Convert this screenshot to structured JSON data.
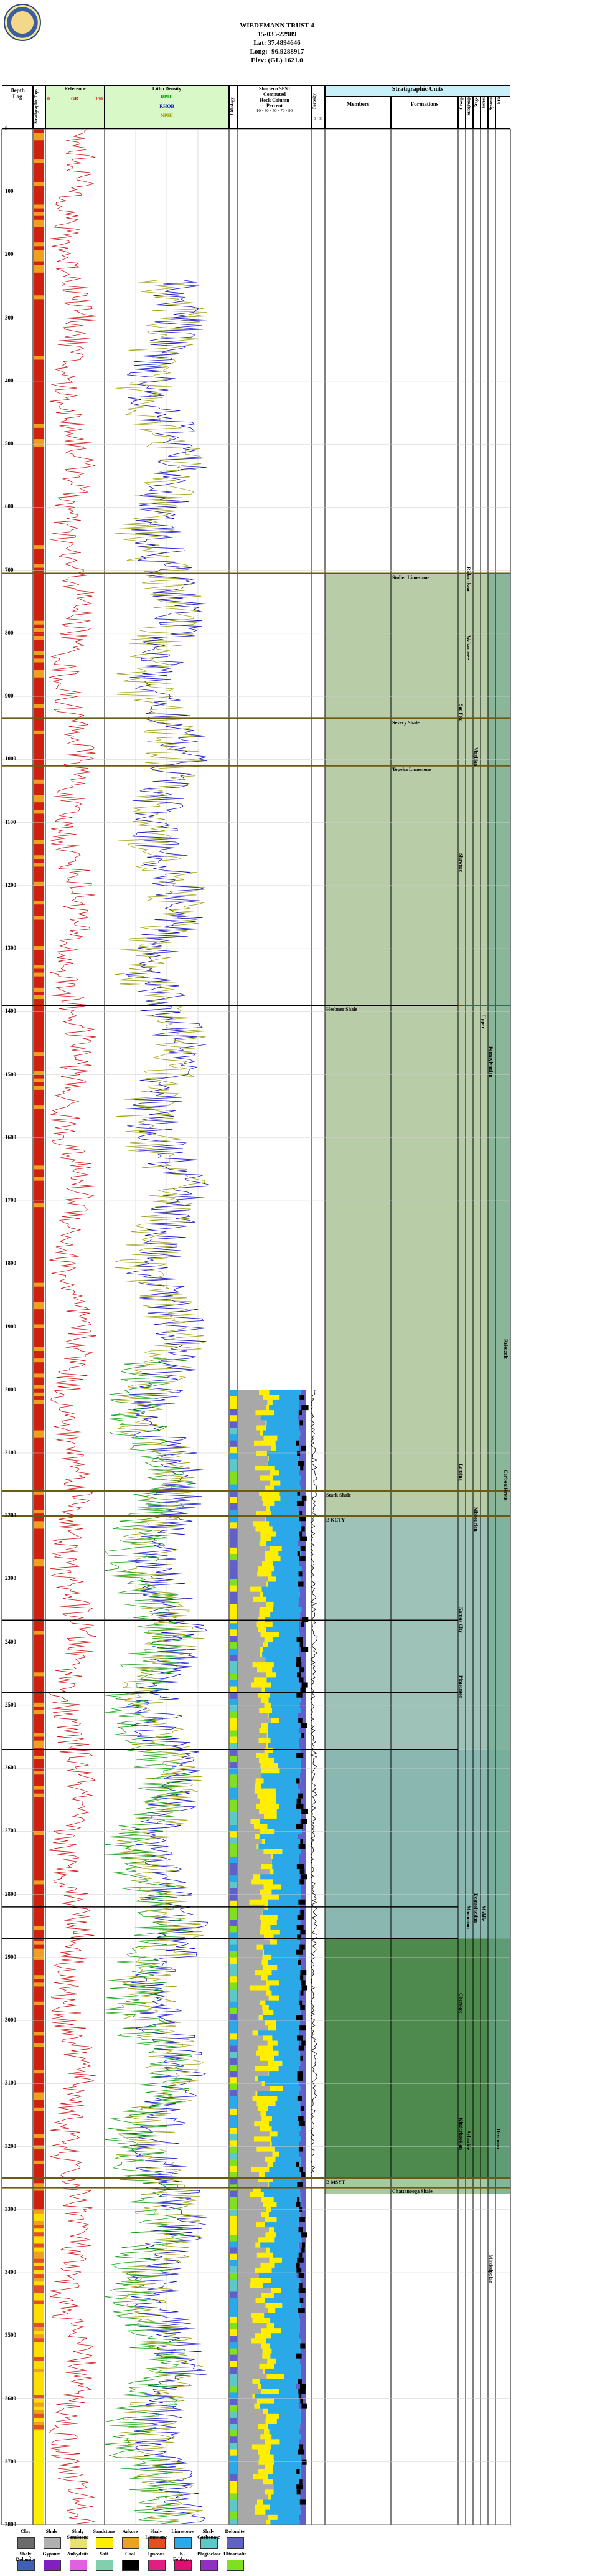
{
  "header": {
    "well_name": "WIEDEMANN TRUST 4",
    "api": "15-035-22989",
    "lat": "Lat: 37.4894646",
    "long": "Long: -96.9288917",
    "elev": "Elev: (GL) 1621.0"
  },
  "columns": {
    "depth_title": "Depth",
    "depth_sub": "Log",
    "tops_label": "Stratigraphic Tops",
    "reference_title": "Reference",
    "gr_label": "GR",
    "gr_min": "0",
    "gr_max": "150",
    "litho_title": "Litho Density",
    "litho_curve1": "RPHI",
    "litho_curve2": "RHOB",
    "litho_curve3": "NPHI",
    "litho_curve1_range": "1.2 · 1.0",
    "litho_curve2_range": "1.5 · 3.0",
    "litho_curve3_range": "0.3 · -0.1",
    "lithology_title": "Lithology",
    "shorteco_title": "Shorteco SPSJ",
    "shorteco_sub1": "Computed",
    "shorteco_sub2": "Rock Column",
    "shorteco_sub3": "Percent",
    "shorteco_ticks": "10 · 30 · 50 · 70 · 90",
    "porosity_title": "Porosity",
    "porosity_range": "0 · 30",
    "strat_title": "Stratigraphic Units",
    "members_title": "Members",
    "formations_title": "Formations",
    "group_title": "Group",
    "subgroup_title": "Subgroup",
    "stage_title": "Stage",
    "series_title": "Series",
    "system_title": "System",
    "erathem_title": "Era"
  },
  "depth_ticks": [
    "0",
    "100",
    "200",
    "300",
    "400",
    "500",
    "600",
    "700",
    "800",
    "900",
    "1000",
    "1100",
    "1200",
    "1300",
    "1400",
    "1500",
    "1600",
    "1700",
    "1800",
    "1900",
    "2000",
    "2100",
    "2200",
    "2300",
    "2400",
    "2500",
    "2600",
    "2700",
    "2800",
    "2900",
    "3000",
    "3100",
    "3200",
    "3300",
    "3400",
    "3500",
    "3600",
    "3700",
    "3800"
  ],
  "tops": [
    {
      "label": "Stoller Limestone",
      "depth": 705
    },
    {
      "label": "Severy Shale",
      "depth": 935
    },
    {
      "label": "Topeka Limestone",
      "depth": 1010
    },
    {
      "label": "Heebner Shale",
      "depth": 1390
    },
    {
      "label": "Stark Shale",
      "depth": 2160
    },
    {
      "label": "B KCTY",
      "depth": 2200
    },
    {
      "label": "B MSYT",
      "depth": 3250
    },
    {
      "label": "Chattanooga Shale",
      "depth": 3265
    }
  ],
  "strat_units": {
    "wabaunsee": "Wabaunsee",
    "shawnee": "Shawnee",
    "sacfox": "Sac Fox",
    "richardson": "Richardson",
    "virgilian": "Virgilian",
    "lansing": "Lansing",
    "kansas_city": "Kansas City",
    "pleasanton": "Pleasanton",
    "missourian": "Missourian",
    "upper": "Upper",
    "pennsylvanian": "Pennsylvanian",
    "marmaton": "Marmaton",
    "cherokee": "Cherokee",
    "desmoinesian": "Desmoinesian",
    "middle": "Middle",
    "mississippian": "Mississippian",
    "kinderhookian": "Kinderhookian",
    "devonian": "Devonian",
    "arbuckle": "Arbuckle",
    "paleozoic": "Paleozoic",
    "carboniferous": "Carboniferous"
  },
  "legend": [
    {
      "label": "Clay",
      "color": "#6b6b6b"
    },
    {
      "label": "Shale",
      "color": "#b0b0b0"
    },
    {
      "label": "Shaly Sandstone",
      "color": "#e8e070"
    },
    {
      "label": "Sandstone",
      "color": "#ffee00"
    },
    {
      "label": "Arkose",
      "color": "#f0a020"
    },
    {
      "label": "Shaly Limestone",
      "color": "#e05020"
    },
    {
      "label": "Limestone",
      "color": "#2aa8e8"
    },
    {
      "label": "Shaly Carbonate",
      "color": "#5ec8c8"
    },
    {
      "label": "Dolomite",
      "color": "#6060c8"
    }
  ],
  "legend2": [
    {
      "label": "Shaly Dolomite",
      "color": "#4060b8"
    },
    {
      "label": "Gypsum",
      "color": "#8020c0"
    },
    {
      "label": "Anhydrite",
      "color": "#e060e0"
    },
    {
      "label": "Salt",
      "color": "#80d0b0"
    },
    {
      "label": "Coal",
      "color": "#000000"
    },
    {
      "label": "Igneous",
      "color": "#e02080"
    },
    {
      "label": "K-Feldspar",
      "color": "#e01070"
    },
    {
      "label": "Plagioclase",
      "color": "#9030c0"
    },
    {
      "label": "Ultramafic",
      "color": "#80e020"
    }
  ],
  "colors": {
    "gr_curve": "#d01010",
    "rhob_curve": "#1010d0",
    "nphi_curve": "#10a010",
    "pennsylvanian_fill": "#b8cca8",
    "cherokee_fill": "#8ab8b0",
    "mississippian_fill": "#4e8a4e"
  }
}
